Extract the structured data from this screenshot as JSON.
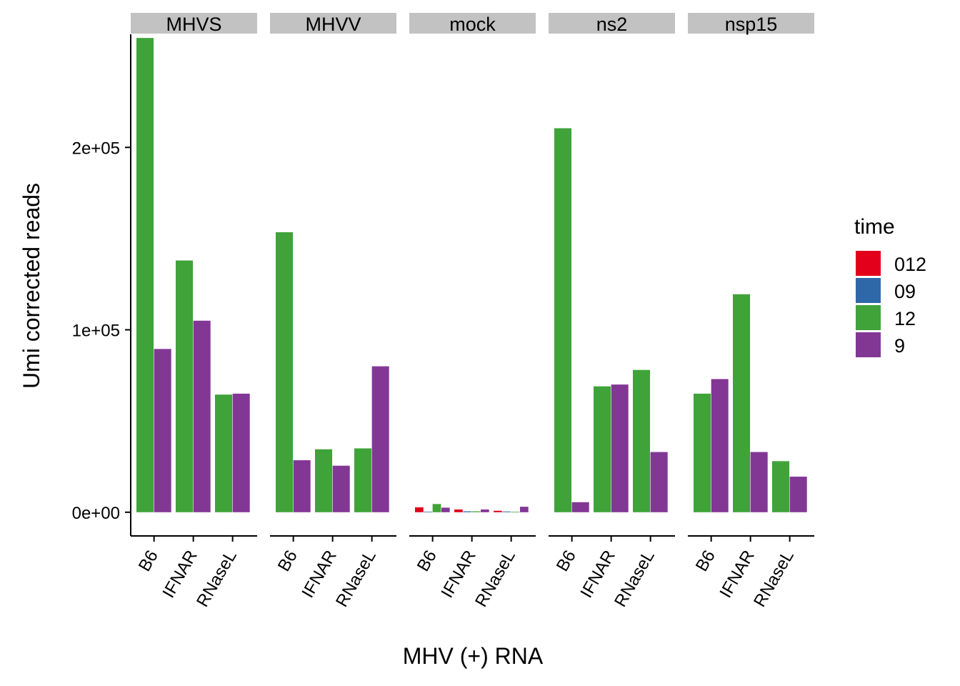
{
  "chart_data": {
    "type": "bar",
    "facet_by": "virus",
    "facets": [
      "MHVS",
      "MHVV",
      "mock",
      "ns2",
      "nsp15"
    ],
    "categories": [
      "B6",
      "IFNAR",
      "RNaseL"
    ],
    "xlabel": "MHV (+) RNA",
    "ylabel": "Umi corrected reads",
    "ylim": [
      -13000,
      262000
    ],
    "y_ticks": [
      0,
      100000,
      200000
    ],
    "y_tick_labels": [
      "0e+00",
      "1e+05",
      "2e+05"
    ],
    "grid": false,
    "legend": {
      "title": "time",
      "placement": "right",
      "entries": [
        {
          "label": "012",
          "color": "#E3001B"
        },
        {
          "label": "09",
          "color": "#2F68A8"
        },
        {
          "label": "12",
          "color": "#3FA33A"
        },
        {
          "label": "9",
          "color": "#833795"
        }
      ]
    },
    "panels": [
      {
        "facet": "MHVS",
        "groups": [
          {
            "category": "B6",
            "bars": [
              {
                "time": "12",
                "value": 260000
              },
              {
                "time": "9",
                "value": 89500
              }
            ]
          },
          {
            "category": "IFNAR",
            "bars": [
              {
                "time": "12",
                "value": 138000
              },
              {
                "time": "9",
                "value": 105000
              }
            ]
          },
          {
            "category": "RNaseL",
            "bars": [
              {
                "time": "12",
                "value": 64500
              },
              {
                "time": "9",
                "value": 65000
              }
            ]
          }
        ]
      },
      {
        "facet": "MHVV",
        "groups": [
          {
            "category": "B6",
            "bars": [
              {
                "time": "12",
                "value": 153500
              },
              {
                "time": "9",
                "value": 28500
              }
            ]
          },
          {
            "category": "IFNAR",
            "bars": [
              {
                "time": "12",
                "value": 34500
              },
              {
                "time": "9",
                "value": 25500
              }
            ]
          },
          {
            "category": "RNaseL",
            "bars": [
              {
                "time": "12",
                "value": 35000
              },
              {
                "time": "9",
                "value": 80000
              }
            ]
          }
        ]
      },
      {
        "facet": "mock",
        "groups": [
          {
            "category": "B6",
            "bars": [
              {
                "time": "012",
                "value": 2700
              },
              {
                "time": "09",
                "value": 300
              },
              {
                "time": "12",
                "value": 4500
              },
              {
                "time": "9",
                "value": 2500
              }
            ]
          },
          {
            "category": "IFNAR",
            "bars": [
              {
                "time": "012",
                "value": 1500
              },
              {
                "time": "09",
                "value": 500
              },
              {
                "time": "12",
                "value": 500
              },
              {
                "time": "9",
                "value": 1500
              }
            ]
          },
          {
            "category": "RNaseL",
            "bars": [
              {
                "time": "012",
                "value": 800
              },
              {
                "time": "09",
                "value": 400
              },
              {
                "time": "12",
                "value": 200
              },
              {
                "time": "9",
                "value": 3000
              }
            ]
          }
        ]
      },
      {
        "facet": "ns2",
        "groups": [
          {
            "category": "B6",
            "bars": [
              {
                "time": "12",
                "value": 210500
              },
              {
                "time": "9",
                "value": 5500
              }
            ]
          },
          {
            "category": "IFNAR",
            "bars": [
              {
                "time": "12",
                "value": 69000
              },
              {
                "time": "9",
                "value": 70000
              }
            ]
          },
          {
            "category": "RNaseL",
            "bars": [
              {
                "time": "12",
                "value": 78000
              },
              {
                "time": "9",
                "value": 33000
              }
            ]
          }
        ]
      },
      {
        "facet": "nsp15",
        "groups": [
          {
            "category": "B6",
            "bars": [
              {
                "time": "12",
                "value": 65000
              },
              {
                "time": "9",
                "value": 73000
              }
            ]
          },
          {
            "category": "IFNAR",
            "bars": [
              {
                "time": "12",
                "value": 119500
              },
              {
                "time": "9",
                "value": 33000
              }
            ]
          },
          {
            "category": "RNaseL",
            "bars": [
              {
                "time": "12",
                "value": 28000
              },
              {
                "time": "9",
                "value": 19500
              }
            ]
          }
        ]
      }
    ]
  }
}
